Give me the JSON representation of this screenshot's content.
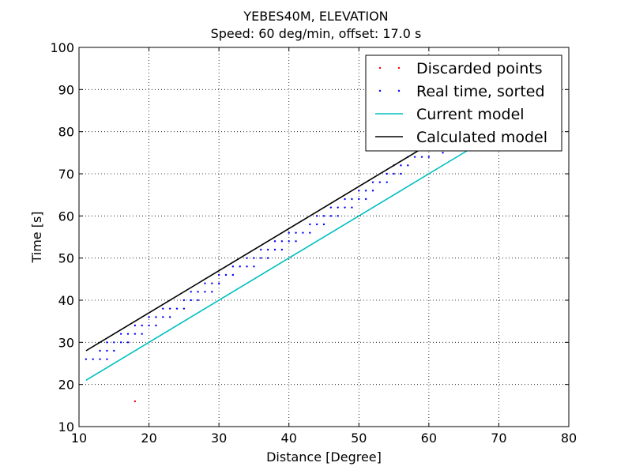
{
  "chart_data": {
    "type": "scatter",
    "title": "YEBES40M, ELEVATION",
    "subtitle": "Speed: 60 deg/min, offset: 17.0 s",
    "xlabel": "Distance [Degree]",
    "ylabel": "Time [s]",
    "xlim": [
      10,
      80
    ],
    "ylim": [
      10,
      100
    ],
    "xticks": [
      "10",
      "20",
      "30",
      "40",
      "50",
      "60",
      "70",
      "80"
    ],
    "yticks": [
      "10",
      "20",
      "30",
      "40",
      "50",
      "60",
      "70",
      "80",
      "90",
      "100"
    ],
    "grid": true,
    "legend_position": "top-right",
    "series": [
      {
        "name": "Discarded points",
        "kind": "points",
        "color": "#ff0000",
        "points": [
          [
            18,
            16
          ]
        ]
      },
      {
        "name": "Real time, sorted",
        "kind": "points",
        "color": "#0000ff",
        "points": [
          [
            11,
            26
          ],
          [
            12,
            26
          ],
          [
            13,
            26
          ],
          [
            13,
            28
          ],
          [
            14,
            26
          ],
          [
            14,
            28
          ],
          [
            14,
            30
          ],
          [
            15,
            28
          ],
          [
            15,
            30
          ],
          [
            16,
            30
          ],
          [
            16,
            32
          ],
          [
            17,
            30
          ],
          [
            17,
            32
          ],
          [
            18,
            32
          ],
          [
            18,
            34
          ],
          [
            19,
            32
          ],
          [
            19,
            34
          ],
          [
            20,
            34
          ],
          [
            20,
            36
          ],
          [
            21,
            34
          ],
          [
            21,
            36
          ],
          [
            22,
            36
          ],
          [
            22,
            38
          ],
          [
            23,
            36
          ],
          [
            23,
            38
          ],
          [
            24,
            38
          ],
          [
            25,
            38
          ],
          [
            25,
            40
          ],
          [
            26,
            40
          ],
          [
            26,
            42
          ],
          [
            27,
            40
          ],
          [
            27,
            42
          ],
          [
            28,
            42
          ],
          [
            28,
            44
          ],
          [
            29,
            42
          ],
          [
            29,
            44
          ],
          [
            30,
            44
          ],
          [
            30,
            46
          ],
          [
            31,
            46
          ],
          [
            32,
            46
          ],
          [
            32,
            48
          ],
          [
            33,
            48
          ],
          [
            34,
            48
          ],
          [
            34,
            50
          ],
          [
            35,
            48
          ],
          [
            35,
            50
          ],
          [
            36,
            50
          ],
          [
            36,
            52
          ],
          [
            37,
            50
          ],
          [
            37,
            52
          ],
          [
            38,
            52
          ],
          [
            38,
            54
          ],
          [
            39,
            52
          ],
          [
            39,
            54
          ],
          [
            40,
            54
          ],
          [
            40,
            56
          ],
          [
            41,
            54
          ],
          [
            41,
            56
          ],
          [
            42,
            56
          ],
          [
            43,
            56
          ],
          [
            43,
            58
          ],
          [
            44,
            58
          ],
          [
            44,
            60
          ],
          [
            45,
            58
          ],
          [
            45,
            60
          ],
          [
            46,
            60
          ],
          [
            46,
            62
          ],
          [
            47,
            60
          ],
          [
            47,
            62
          ],
          [
            48,
            62
          ],
          [
            48,
            64
          ],
          [
            49,
            62
          ],
          [
            49,
            64
          ],
          [
            50,
            64
          ],
          [
            50,
            66
          ],
          [
            51,
            64
          ],
          [
            51,
            66
          ],
          [
            52,
            66
          ],
          [
            52,
            68
          ],
          [
            53,
            68
          ],
          [
            54,
            68
          ],
          [
            54,
            70
          ],
          [
            55,
            70
          ],
          [
            55,
            72
          ],
          [
            56,
            70
          ],
          [
            56,
            72
          ],
          [
            57,
            72
          ],
          [
            57,
            74
          ],
          [
            58,
            74
          ],
          [
            58,
            76
          ],
          [
            59,
            74
          ],
          [
            59,
            76
          ],
          [
            60,
            74
          ],
          [
            60,
            76
          ],
          [
            62,
            75
          ],
          [
            63,
            76
          ]
        ]
      },
      {
        "name": "Current model",
        "kind": "line",
        "color": "#00bfbf",
        "points": [
          [
            11,
            21
          ],
          [
            66,
            76
          ]
        ]
      },
      {
        "name": "Calculated model",
        "kind": "line",
        "color": "#000000",
        "points": [
          [
            11,
            28
          ],
          [
            60,
            77
          ]
        ]
      }
    ]
  }
}
